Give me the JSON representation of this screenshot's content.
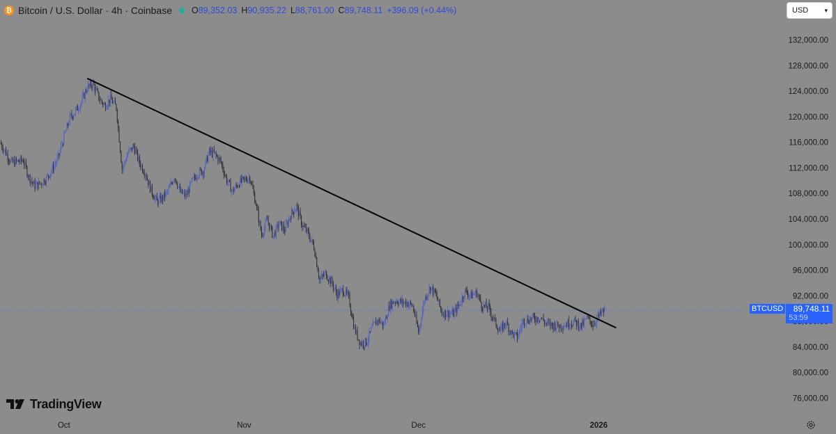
{
  "header": {
    "symbol_title": "Bitcoin / U.S. Dollar · 4h · Coinbase",
    "ohlc": [
      {
        "key": "O",
        "value": "89,352.03"
      },
      {
        "key": "H",
        "value": "90,935.22"
      },
      {
        "key": "L",
        "value": "88,761.00"
      },
      {
        "key": "C",
        "value": "89,748.11"
      },
      {
        "key": "",
        "value": "+396.09 (+0.44%)"
      }
    ],
    "status_color": "#22ab94"
  },
  "currency_select": {
    "value": "USD"
  },
  "price_tag": {
    "symbol": "BTCUSD",
    "price": "89,748.11",
    "countdown": "53:59"
  },
  "brand": {
    "name": "TradingView"
  },
  "colors": {
    "background": "#8c8c8c",
    "accent": "#2962ff",
    "up_candle": "#4c5ec9",
    "down_candle": "#2b2b2b",
    "trendline": "#000000"
  },
  "chart_data": {
    "type": "line",
    "title": "Bitcoin / U.S. Dollar · 4h · Coinbase",
    "ylim": [
      73000,
      135000
    ],
    "y_ticks": [
      132000,
      128000,
      124000,
      120000,
      116000,
      112000,
      108000,
      104000,
      100000,
      96000,
      92000,
      88000,
      84000,
      80000,
      76000
    ],
    "y_tick_labels": [
      "132,000.00",
      "128,000.00",
      "124,000.00",
      "120,000.00",
      "116,000.00",
      "112,000.00",
      "108,000.00",
      "104,000.00",
      "100,000.00",
      "96,000.00",
      "92,000.00",
      "88,000.00",
      "84,000.00",
      "80,000.00",
      "76,000.00"
    ],
    "x_ticks": [
      {
        "date": "2025-10-01",
        "label": "Oct"
      },
      {
        "date": "2025-11-01",
        "label": "Nov"
      },
      {
        "date": "2025-12-01",
        "label": "Dec"
      },
      {
        "date": "2026-01-01",
        "label": "2026"
      }
    ],
    "xlim": [
      "2025-09-20",
      "2026-01-26"
    ],
    "last_price": 89748.11,
    "series": [
      {
        "name": "BTCUSD",
        "closes": [
          [
            "2025-09-20",
            116000
          ],
          [
            "2025-09-22",
            112800
          ],
          [
            "2025-09-24",
            113200
          ],
          [
            "2025-09-25",
            110500
          ],
          [
            "2025-09-26",
            109200
          ],
          [
            "2025-09-27",
            109600
          ],
          [
            "2025-09-28",
            110400
          ],
          [
            "2025-09-29",
            111800
          ],
          [
            "2025-09-30",
            113600
          ],
          [
            "2025-10-01",
            116800
          ],
          [
            "2025-10-02",
            119800
          ],
          [
            "2025-10-03",
            120900
          ],
          [
            "2025-10-04",
            122300
          ],
          [
            "2025-10-05",
            124600
          ],
          [
            "2025-10-06",
            125200
          ],
          [
            "2025-10-07",
            123000
          ],
          [
            "2025-10-08",
            121700
          ],
          [
            "2025-10-09",
            122800
          ],
          [
            "2025-10-10",
            121500
          ],
          [
            "2025-10-11",
            111800
          ],
          [
            "2025-10-12",
            114300
          ],
          [
            "2025-10-13",
            115400
          ],
          [
            "2025-10-14",
            112800
          ],
          [
            "2025-10-15",
            111200
          ],
          [
            "2025-10-16",
            108500
          ],
          [
            "2025-10-17",
            106700
          ],
          [
            "2025-10-18",
            107300
          ],
          [
            "2025-10-19",
            108500
          ],
          [
            "2025-10-20",
            110800
          ],
          [
            "2025-10-21",
            108200
          ],
          [
            "2025-10-22",
            107600
          ],
          [
            "2025-10-23",
            109800
          ],
          [
            "2025-10-24",
            111200
          ],
          [
            "2025-10-25",
            111600
          ],
          [
            "2025-10-26",
            114500
          ],
          [
            "2025-10-27",
            114100
          ],
          [
            "2025-10-28",
            112900
          ],
          [
            "2025-10-29",
            110100
          ],
          [
            "2025-10-30",
            108300
          ],
          [
            "2025-10-31",
            109600
          ],
          [
            "2025-11-01",
            110100
          ],
          [
            "2025-11-02",
            110600
          ],
          [
            "2025-11-03",
            106500
          ],
          [
            "2025-11-04",
            101500
          ],
          [
            "2025-11-05",
            103900
          ],
          [
            "2025-11-06",
            101300
          ],
          [
            "2025-11-07",
            103300
          ],
          [
            "2025-11-08",
            102300
          ],
          [
            "2025-11-09",
            104700
          ],
          [
            "2025-11-10",
            106000
          ],
          [
            "2025-11-11",
            103000
          ],
          [
            "2025-11-12",
            101700
          ],
          [
            "2025-11-13",
            99700
          ],
          [
            "2025-11-14",
            94500
          ],
          [
            "2025-11-15",
            95500
          ],
          [
            "2025-11-16",
            94200
          ],
          [
            "2025-11-17",
            92200
          ],
          [
            "2025-11-18",
            92900
          ],
          [
            "2025-11-19",
            91600
          ],
          [
            "2025-11-20",
            86800
          ],
          [
            "2025-11-21",
            84600
          ],
          [
            "2025-11-22",
            84700
          ],
          [
            "2025-11-23",
            86900
          ],
          [
            "2025-11-24",
            88300
          ],
          [
            "2025-11-25",
            87400
          ],
          [
            "2025-11-26",
            90500
          ],
          [
            "2025-11-27",
            91300
          ],
          [
            "2025-11-28",
            91000
          ],
          [
            "2025-11-29",
            90900
          ],
          [
            "2025-11-30",
            90400
          ],
          [
            "2025-12-01",
            86300
          ],
          [
            "2025-12-02",
            91400
          ],
          [
            "2025-12-03",
            93400
          ],
          [
            "2025-12-04",
            92100
          ],
          [
            "2025-12-05",
            89400
          ],
          [
            "2025-12-06",
            89300
          ],
          [
            "2025-12-07",
            89200
          ],
          [
            "2025-12-08",
            90600
          ],
          [
            "2025-12-09",
            92700
          ],
          [
            "2025-12-10",
            92000
          ],
          [
            "2025-12-11",
            92500
          ],
          [
            "2025-12-12",
            90300
          ],
          [
            "2025-12-13",
            90200
          ],
          [
            "2025-12-14",
            88200
          ],
          [
            "2025-12-15",
            86400
          ],
          [
            "2025-12-16",
            87800
          ],
          [
            "2025-12-17",
            86200
          ],
          [
            "2025-12-18",
            85500
          ],
          [
            "2025-12-19",
            88100
          ],
          [
            "2025-12-20",
            88300
          ],
          [
            "2025-12-21",
            88500
          ],
          [
            "2025-12-22",
            88600
          ],
          [
            "2025-12-23",
            87600
          ],
          [
            "2025-12-24",
            87400
          ],
          [
            "2025-12-25",
            87300
          ],
          [
            "2025-12-26",
            87400
          ],
          [
            "2025-12-27",
            87800
          ],
          [
            "2025-12-28",
            87900
          ],
          [
            "2025-12-29",
            87200
          ],
          [
            "2025-12-30",
            88500
          ],
          [
            "2025-12-31",
            87600
          ],
          [
            "2026-01-01",
            88800
          ],
          [
            "2026-01-02",
            89748
          ]
        ]
      }
    ],
    "trendline": {
      "start": [
        "2025-10-05",
        126000
      ],
      "end": [
        "2026-01-04",
        87000
      ]
    },
    "grid": false,
    "legend": "none"
  }
}
